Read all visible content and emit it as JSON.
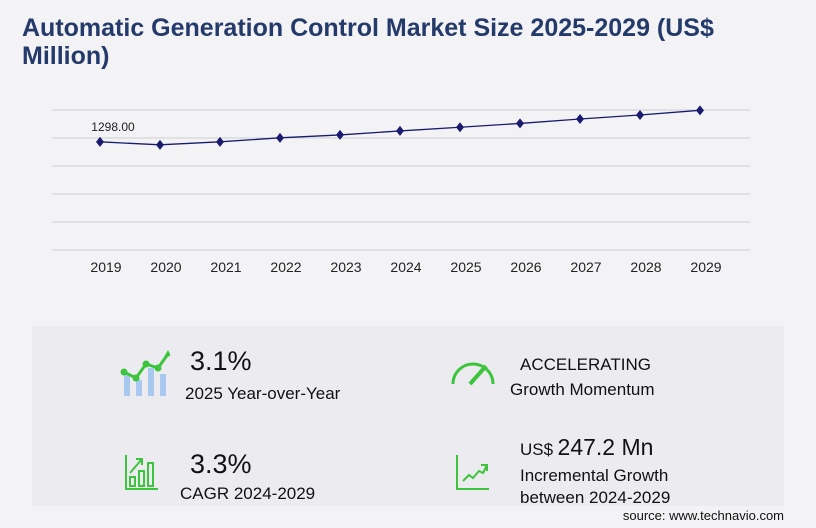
{
  "title": "Automatic Generation Control Market Size 2025-2029 (US$ Million)",
  "chart_data": {
    "type": "line",
    "categories": [
      "2019",
      "2020",
      "2021",
      "2022",
      "2023",
      "2024",
      "2025",
      "2026",
      "2027",
      "2028",
      "2029"
    ],
    "values": [
      1298,
      1262,
      1298,
      1346,
      1381,
      1429,
      1473,
      1519,
      1572,
      1620,
      1676
    ],
    "data_labels": [
      "1298.00"
    ],
    "ylim": [
      0,
      1680
    ],
    "grid": true,
    "line_color": "#1a1a6e",
    "marker": "diamond"
  },
  "stats": {
    "yoy_value": "3.1%",
    "yoy_label": "2025 Year-over-Year",
    "momentum_value": "ACCELERATING",
    "momentum_label": "Growth Momentum",
    "cagr_value": "3.3%",
    "cagr_label": "CAGR 2024-2029",
    "incr_prefix": "US$",
    "incr_value": "247.2 Mn",
    "incr_label1": "Incremental Growth",
    "incr_label2": "between 2024-2029"
  },
  "source": "source: www.technavio.com",
  "colors": {
    "accent_green": "#3cc43c",
    "bar_blue": "#a9c8f0",
    "title": "#243a6b"
  }
}
